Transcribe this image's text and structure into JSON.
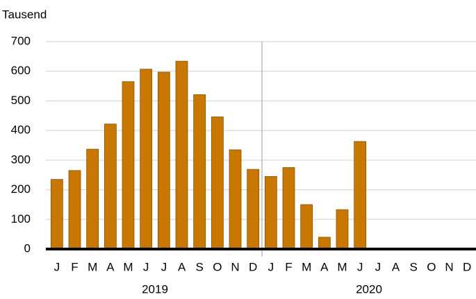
{
  "chart_data": {
    "type": "bar",
    "y_axis_label": "Tausend",
    "categories": [
      "J",
      "F",
      "M",
      "A",
      "M",
      "J",
      "J",
      "A",
      "S",
      "O",
      "N",
      "D",
      "J",
      "F",
      "M",
      "A",
      "M",
      "J",
      "J",
      "A",
      "S",
      "O",
      "N",
      "D"
    ],
    "groups": [
      "2019",
      "2020"
    ],
    "values": [
      235,
      265,
      337,
      422,
      565,
      607,
      597,
      634,
      521,
      446,
      335,
      269,
      245,
      275,
      150,
      40,
      133,
      363,
      null,
      null,
      null,
      null,
      null,
      null
    ],
    "color": "#c87800",
    "ylim": [
      0,
      700
    ],
    "yticks": [
      0,
      100,
      200,
      300,
      400,
      500,
      600,
      700
    ],
    "grid": true
  }
}
